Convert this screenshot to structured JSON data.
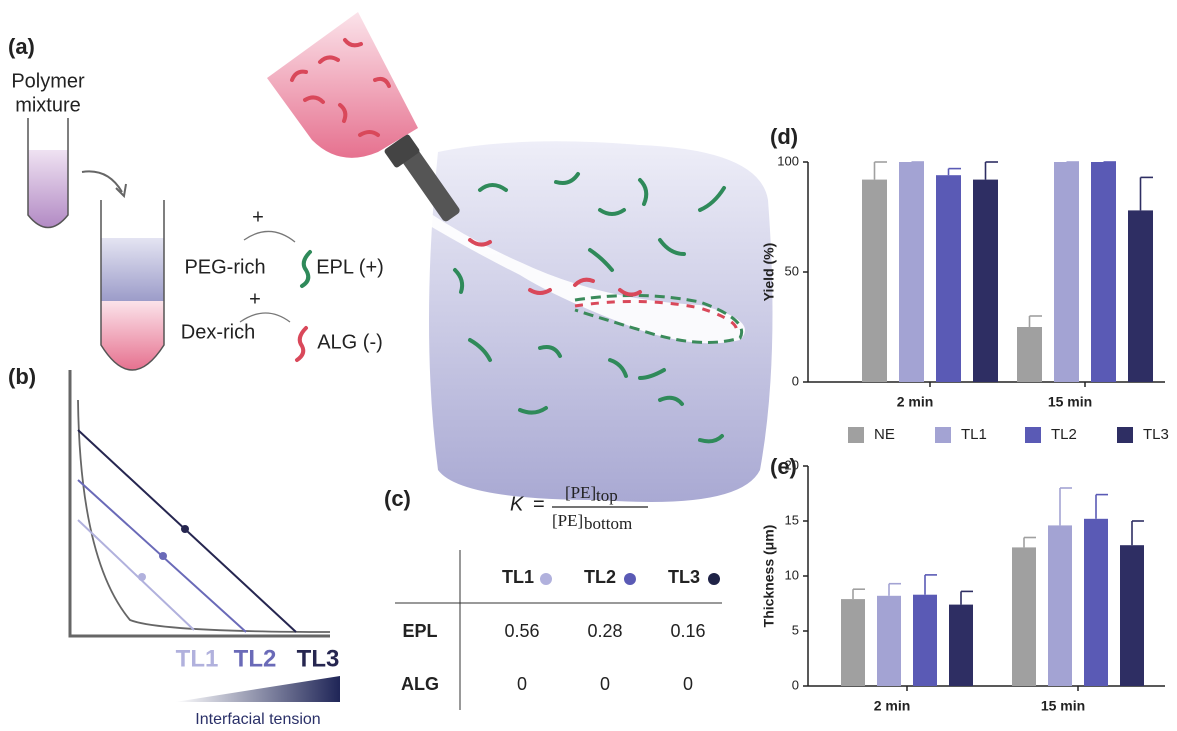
{
  "panel_a": {
    "label": "(a)",
    "mixture_lines": [
      "Polymer",
      "mixture"
    ],
    "peg_rich": "PEG-rich",
    "dex_rich": "Dex-rich",
    "plus": [
      "+",
      "+"
    ],
    "epl": "EPL (+)",
    "alg": "ALG (-)"
  },
  "panel_b": {
    "label": "(b)",
    "tie_lines": [
      "TL1",
      "TL2",
      "TL3"
    ],
    "gradient_label": "Interfacial tension"
  },
  "panel_c": {
    "label": "(c)",
    "formula": {
      "k": "K",
      "eq": "=",
      "numerator": "[PE]",
      "num_sub": "top",
      "denominator": "[PE]",
      "den_sub": "bottom"
    },
    "columns": [
      "TL1",
      "TL2",
      "TL3"
    ],
    "rows": [
      [
        "EPL",
        "0.56",
        "0.28",
        "0.16"
      ],
      [
        "ALG",
        "0",
        "0",
        "0"
      ]
    ]
  },
  "chart_data": [
    {
      "type": "bar",
      "panel": "(d)",
      "y_label": "Yield (%)",
      "categories": [
        "2 min",
        "15 min"
      ],
      "ylim": [
        0,
        100
      ],
      "yticks": [
        0,
        50,
        100
      ],
      "legend": "bottom",
      "series": [
        {
          "name": "NE",
          "color": "#a0a0a0",
          "values": [
            92,
            25
          ],
          "errors": [
            8,
            5
          ]
        },
        {
          "name": "TL1",
          "color": "#a3a3d3",
          "values": [
            100,
            100
          ],
          "errors": [
            0,
            0
          ]
        },
        {
          "name": "TL2",
          "color": "#5a5ab5",
          "values": [
            94,
            100
          ],
          "errors": [
            3,
            0
          ]
        },
        {
          "name": "TL3",
          "color": "#2e2e63",
          "values": [
            92,
            78
          ],
          "errors": [
            8,
            15
          ]
        }
      ]
    },
    {
      "type": "bar",
      "panel": "(e)",
      "y_label": "Thickness (μm)",
      "categories": [
        "2 min",
        "15 min"
      ],
      "ylim": [
        0,
        20
      ],
      "yticks": [
        0,
        5,
        10,
        15,
        20
      ],
      "series": [
        {
          "name": "NE",
          "color": "#a0a0a0",
          "values": [
            7.9,
            12.6
          ],
          "errors": [
            0.9,
            0.9
          ]
        },
        {
          "name": "TL1",
          "color": "#a3a3d3",
          "values": [
            8.2,
            14.6
          ],
          "errors": [
            1.1,
            3.4
          ]
        },
        {
          "name": "TL2",
          "color": "#5a5ab5",
          "values": [
            8.3,
            15.2
          ],
          "errors": [
            1.8,
            2.2
          ]
        },
        {
          "name": "TL3",
          "color": "#2e2e63",
          "values": [
            7.4,
            12.8
          ],
          "errors": [
            1.2,
            2.2
          ]
        }
      ]
    }
  ]
}
